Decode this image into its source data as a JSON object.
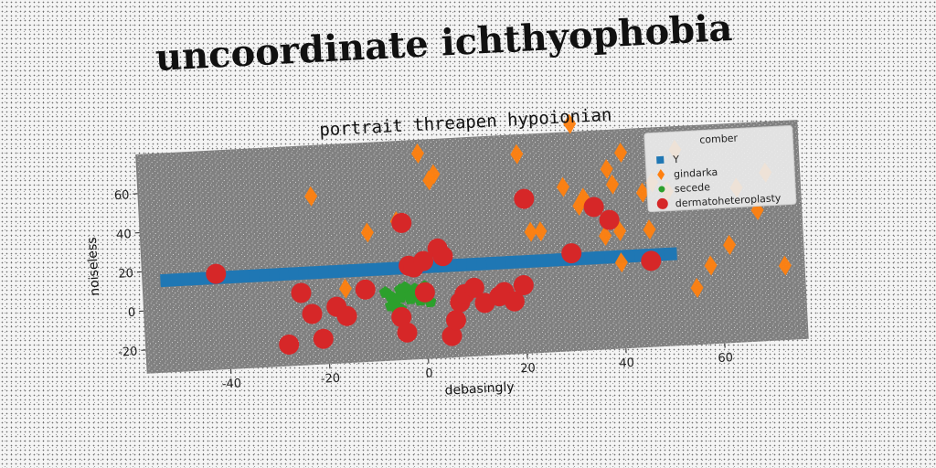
{
  "title": "uncoordinate ichthyophobia",
  "chart_data": {
    "type": "scatter",
    "title": "portrait threapen hypoionian",
    "xlabel": "debasingly",
    "ylabel": "noiseless",
    "xlim": [
      -57,
      77
    ],
    "ylim": [
      -32,
      80
    ],
    "xticks": [
      -40,
      -20,
      0,
      20,
      40,
      60
    ],
    "yticks": [
      -20,
      0,
      20,
      40,
      60
    ],
    "legend_title": "comber",
    "legend_position": "top-right",
    "background": "#808080",
    "series": [
      {
        "name": "Y",
        "marker": "square",
        "color": "#1f77b4",
        "x": [
          -52,
          -50,
          -48,
          -46,
          -44,
          -42,
          -40,
          -38,
          -36,
          -34,
          -32,
          -30,
          -28,
          -26,
          -24,
          -22,
          -20,
          -18,
          -16,
          -14,
          -12,
          -10,
          -8,
          -6,
          -4,
          -2,
          0,
          2,
          4,
          6,
          8,
          10,
          12,
          14,
          16,
          18,
          20,
          22,
          24,
          26,
          28,
          30,
          32,
          34,
          36,
          38,
          40,
          42,
          44,
          46,
          48,
          50
        ],
        "y": [
          15,
          15,
          15,
          15,
          15,
          15,
          15,
          15,
          15,
          15,
          15,
          15,
          15,
          15,
          15,
          15,
          15,
          15,
          15,
          15,
          15,
          15,
          15,
          15,
          15,
          15,
          15,
          15,
          15,
          15,
          15,
          15,
          15,
          15,
          15,
          15,
          15,
          15,
          15,
          15,
          15,
          15,
          15,
          15,
          15,
          15,
          15,
          15,
          15,
          15,
          15,
          15
        ]
      },
      {
        "name": "gindarka",
        "marker": "diamond",
        "color": "#ff7f0e",
        "x": [
          -22,
          -11,
          -5,
          -16,
          0,
          2,
          3,
          20,
          22,
          24,
          29,
          31,
          32,
          33,
          37,
          38,
          39,
          40,
          40,
          41,
          45,
          46,
          47,
          50,
          52,
          55,
          58,
          62,
          64,
          68,
          70,
          73
        ],
        "y": [
          54,
          34,
          39,
          6,
          73,
          59,
          62,
          70,
          30,
          30,
          52,
          84,
          42,
          46,
          26,
          60,
          52,
          28,
          12,
          68,
          47,
          28,
          52,
          47,
          68,
          -3,
          8,
          18,
          47,
          35,
          54,
          6
        ]
      },
      {
        "name": "secede",
        "marker": "pentagon",
        "color": "#2ca02c",
        "x": [
          -8,
          -7,
          -6,
          -5,
          -5,
          -4,
          -3,
          -2,
          -2,
          -1,
          0,
          1,
          -6,
          -4,
          -3,
          -1,
          0,
          -7,
          -5,
          -2
        ],
        "y": [
          3,
          1,
          -2,
          4,
          0,
          2,
          -1,
          3,
          0,
          2,
          5,
          -3,
          -5,
          5,
          1,
          -2,
          0,
          -4,
          -6,
          4
        ]
      },
      {
        "name": "dermatoheteroplasty",
        "marker": "circle",
        "color": "#d62728",
        "x": [
          -42,
          -28,
          -25,
          -23,
          -21,
          -18,
          -16,
          -12,
          -4,
          -5,
          -3,
          -4,
          -2,
          0,
          0,
          3,
          4,
          5,
          6,
          7,
          8,
          10,
          12,
          15,
          16,
          18,
          20,
          21,
          30,
          35,
          38,
          46
        ],
        "y": [
          17,
          -21,
          5,
          -6,
          -19,
          -3,
          -8,
          5,
          38,
          -10,
          16,
          -18,
          15,
          18,
          2,
          24,
          20,
          -21,
          -13,
          -4,
          0,
          3,
          -5,
          -2,
          0,
          -5,
          3,
          47,
          18,
          41,
          34,
          12
        ]
      }
    ]
  }
}
